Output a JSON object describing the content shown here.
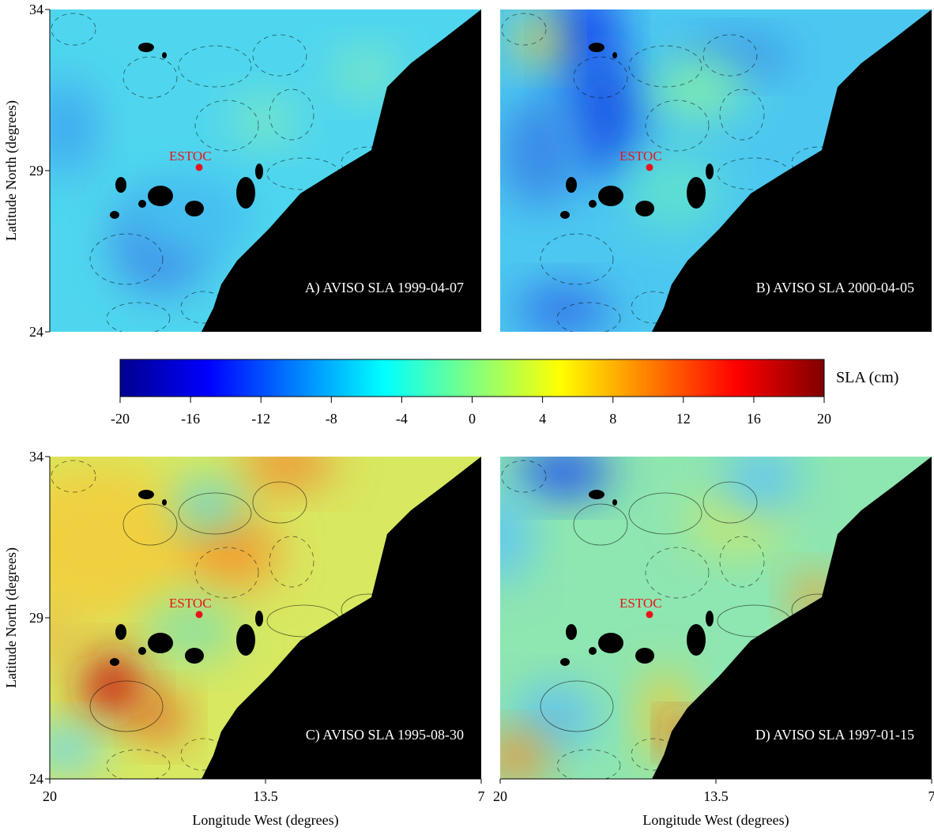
{
  "y_axis_label": "Latitude North (degrees)",
  "x_axis_label": "Longitude West (degrees)",
  "lat_lim": [
    24,
    34
  ],
  "lat_ticks": [
    24,
    29,
    34
  ],
  "lon_lim": [
    20,
    7
  ],
  "lon_ticks": [
    20,
    13.5,
    7
  ],
  "station": {
    "label": "ESTOC",
    "lat": 29.1,
    "lon": 15.5
  },
  "colorbar": {
    "label": "SLA (cm)",
    "lim": [
      -20,
      20
    ],
    "ticks": [
      -20,
      -16,
      -12,
      -8,
      -4,
      0,
      4,
      8,
      12,
      16,
      20
    ]
  },
  "panels": [
    {
      "label": "A) AVISO SLA 1999-04-07"
    },
    {
      "label": "B) AVISO SLA 2000-04-05"
    },
    {
      "label": "C) AVISO SLA 1995-08-30"
    },
    {
      "label": "D) AVISO SLA 1997-01-15"
    }
  ]
}
